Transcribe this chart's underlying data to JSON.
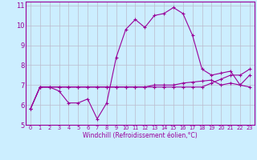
{
  "title": "",
  "xlabel": "Windchill (Refroidissement éolien,°C)",
  "background_color": "#cceeff",
  "line_color": "#990099",
  "grid_color": "#bbbbcc",
  "xlim": [
    -0.5,
    23.5
  ],
  "ylim": [
    5.0,
    11.2
  ],
  "yticks": [
    5,
    6,
    7,
    8,
    9,
    10,
    11
  ],
  "xticks": [
    0,
    1,
    2,
    3,
    4,
    5,
    6,
    7,
    8,
    9,
    10,
    11,
    12,
    13,
    14,
    15,
    16,
    17,
    18,
    19,
    20,
    21,
    22,
    23
  ],
  "series1_x": [
    0,
    1,
    2,
    3,
    4,
    5,
    6,
    7,
    8,
    9,
    10,
    11,
    12,
    13,
    14,
    15,
    16,
    17,
    18,
    19,
    20,
    21,
    22,
    23
  ],
  "series1_y": [
    5.8,
    6.9,
    6.9,
    6.7,
    6.1,
    6.1,
    6.3,
    5.3,
    6.1,
    8.4,
    9.8,
    10.3,
    9.9,
    10.5,
    10.6,
    10.9,
    10.6,
    9.5,
    7.8,
    7.5,
    7.6,
    7.7,
    7.0,
    6.9
  ],
  "series2_x": [
    0,
    1,
    2,
    3,
    4,
    5,
    6,
    7,
    8,
    9,
    10,
    11,
    12,
    13,
    14,
    15,
    16,
    17,
    18,
    19,
    20,
    21,
    22,
    23
  ],
  "series2_y": [
    5.8,
    6.9,
    6.9,
    6.9,
    6.9,
    6.9,
    6.9,
    6.9,
    6.9,
    6.9,
    6.9,
    6.9,
    6.9,
    6.9,
    6.9,
    6.9,
    6.9,
    6.9,
    6.9,
    7.1,
    7.3,
    7.5,
    7.5,
    7.8
  ],
  "series3_x": [
    0,
    1,
    2,
    3,
    4,
    5,
    6,
    7,
    8,
    9,
    10,
    11,
    12,
    13,
    14,
    15,
    16,
    17,
    18,
    19,
    20,
    21,
    22,
    23
  ],
  "series3_y": [
    5.8,
    6.9,
    6.9,
    6.9,
    6.9,
    6.9,
    6.9,
    6.9,
    6.9,
    6.9,
    6.9,
    6.9,
    6.9,
    7.0,
    7.0,
    7.0,
    7.1,
    7.15,
    7.2,
    7.25,
    7.0,
    7.1,
    7.0,
    7.5
  ],
  "xlabel_fontsize": 5.5,
  "ytick_fontsize": 6.0,
  "xtick_fontsize": 4.8
}
